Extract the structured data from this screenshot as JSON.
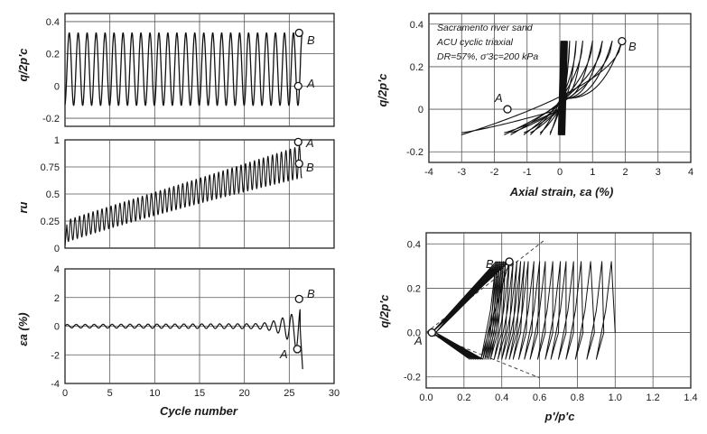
{
  "figure": {
    "panels": [
      {
        "id": "q-vs-cycle",
        "ylabel": "q/2p'c"
      },
      {
        "id": "ru-vs-cycle",
        "ylabel": "ru"
      },
      {
        "id": "ea-vs-cycle",
        "ylabel": "εa (%)",
        "xlabel": "Cycle number"
      },
      {
        "id": "q-vs-strain",
        "ylabel": "q/2p'c",
        "xlabel": "Axial strain, εa (%)"
      },
      {
        "id": "q-vs-pp",
        "ylabel": "q/2p'c",
        "xlabel": "p'/p'c"
      }
    ],
    "annotations": {
      "line1": "Sacramento river sand",
      "line2": "ACU cyclic triaxial",
      "line3": "DR=57%, σ'3c=200 kPa"
    },
    "point_labels": {
      "A": "A",
      "B": "B"
    }
  },
  "chart_data": [
    {
      "type": "line",
      "panel": "q-vs-cycle",
      "xlabel": "",
      "ylabel": "q/2p'c",
      "xlim": [
        0,
        30
      ],
      "ylim": [
        -0.25,
        0.45
      ],
      "x_ticks": [
        0,
        5,
        10,
        15,
        20,
        25,
        30
      ],
      "y_ticks": [
        "-0.2",
        "0",
        "0.2",
        "0.4"
      ],
      "series": [
        {
          "cycles": 26.5,
          "max": 0.33,
          "min": -0.12
        }
      ],
      "points": [
        {
          "label": "A",
          "x": 26.0,
          "y": 0.0
        },
        {
          "label": "B",
          "x": 26.1,
          "y": 0.33
        }
      ]
    },
    {
      "type": "line",
      "panel": "ru-vs-cycle",
      "xlabel": "",
      "ylabel": "ru",
      "xlim": [
        0,
        30
      ],
      "ylim": [
        0,
        1
      ],
      "x_ticks": [
        0,
        5,
        10,
        15,
        20,
        25,
        30
      ],
      "y_ticks": [
        "0",
        "0.25",
        "0.5",
        "0.75",
        "1"
      ],
      "series": [
        {
          "start_mean": 0.15,
          "end_mean": 0.8,
          "start_amplitude": 0.1,
          "end_amplitude": 0.1
        }
      ],
      "points": [
        {
          "label": "A",
          "x": 26.0,
          "y": 0.98
        },
        {
          "label": "B",
          "x": 26.1,
          "y": 0.78
        }
      ]
    },
    {
      "type": "line",
      "panel": "ea-vs-cycle",
      "xlabel": "Cycle number",
      "ylabel": "εa (%)",
      "xlim": [
        0,
        30
      ],
      "ylim": [
        -4,
        4
      ],
      "x_ticks": [
        0,
        5,
        10,
        15,
        20,
        25,
        30
      ],
      "y_ticks": [
        "-4",
        "-2",
        "0",
        "2",
        "4"
      ],
      "series": [
        {
          "cycles": 26.5,
          "final_max": 2.0,
          "final_min": -3.0
        }
      ],
      "points": [
        {
          "label": "A",
          "x": 25.9,
          "y": -1.6
        },
        {
          "label": "B",
          "x": 26.1,
          "y": 1.9
        }
      ]
    },
    {
      "type": "line",
      "panel": "q-vs-strain",
      "xlabel": "Axial strain, εa (%)",
      "ylabel": "q/2p'c",
      "xlim": [
        -4,
        4
      ],
      "ylim": [
        -0.25,
        0.45
      ],
      "x_ticks": [
        "-4",
        "-3",
        "-2",
        "-1",
        "0",
        "1",
        "2",
        "3",
        "4"
      ],
      "y_ticks": [
        "-0.2",
        "0",
        "0.2",
        "0.4"
      ],
      "loops": [
        {
          "min_strain": -0.3,
          "max_strain": 0.3
        },
        {
          "min_strain": -0.6,
          "max_strain": 0.5
        },
        {
          "min_strain": -0.9,
          "max_strain": 0.7
        },
        {
          "min_strain": -1.1,
          "max_strain": 1.0
        },
        {
          "min_strain": -1.5,
          "max_strain": 1.3
        },
        {
          "min_strain": -1.7,
          "max_strain": 1.6
        },
        {
          "min_strain": -3.0,
          "max_strain": 1.9
        }
      ],
      "points": [
        {
          "label": "A",
          "x": -1.6,
          "y": 0.0
        },
        {
          "label": "B",
          "x": 1.9,
          "y": 0.32
        }
      ]
    },
    {
      "type": "line",
      "panel": "q-vs-pp",
      "xlabel": "p'/p'c",
      "ylabel": "q/2p'c",
      "xlim": [
        0,
        1.4
      ],
      "ylim": [
        -0.25,
        0.45
      ],
      "x_ticks": [
        "0.0",
        "0.2",
        "0.4",
        "0.6",
        "0.8",
        "1.0",
        "1.2",
        "1.4"
      ],
      "y_ticks": [
        "-0.2",
        "0.0",
        "0.2",
        "0.4"
      ],
      "stress_path_p_at_qmax": [
        0.98,
        0.93,
        0.87,
        0.82,
        0.78,
        0.74,
        0.71,
        0.67,
        0.63,
        0.6,
        0.57,
        0.54,
        0.52,
        0.5,
        0.48,
        0.46,
        0.44,
        0.42,
        0.41,
        0.4,
        0.39,
        0.38,
        0.37
      ],
      "envelope_slope": 0.68,
      "points": [
        {
          "label": "A",
          "x": 0.03,
          "y": 0.0
        },
        {
          "label": "B",
          "x": 0.44,
          "y": 0.32
        }
      ]
    }
  ]
}
